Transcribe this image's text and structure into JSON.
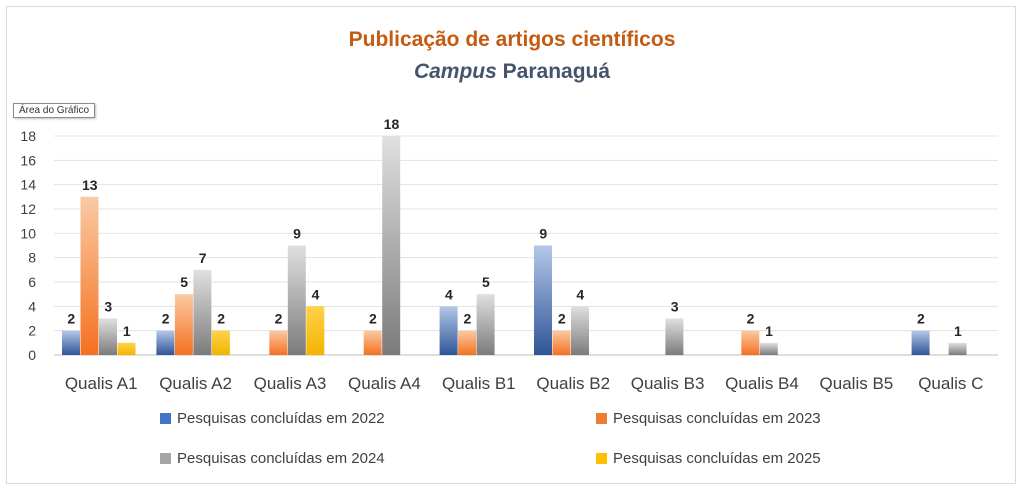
{
  "title_line1": "Publicação de artigos científicos",
  "title_line2_italic": "Campus",
  "title_line2_rest": "Paranaguá",
  "tooltip": "Área do Gráfico",
  "chart_data": {
    "type": "bar",
    "categories": [
      "Qualis A1",
      "Qualis A2",
      "Qualis A3",
      "Qualis A4",
      "Qualis B1",
      "Qualis B2",
      "Qualis B3",
      "Qualis B4",
      "Qualis B5",
      "Qualis C"
    ],
    "series": [
      {
        "name": "Pesquisas concluídas em 2022",
        "color": "#4472c4",
        "values": [
          2,
          2,
          null,
          null,
          4,
          9,
          null,
          null,
          null,
          2
        ]
      },
      {
        "name": "Pesquisas concluídas em 2023",
        "color": "#ed7d31",
        "values": [
          13,
          5,
          2,
          2,
          2,
          2,
          null,
          2,
          null,
          null
        ]
      },
      {
        "name": "Pesquisas concluídas em 2024",
        "color": "#a5a5a5",
        "values": [
          3,
          7,
          9,
          18,
          5,
          4,
          3,
          1,
          null,
          1
        ]
      },
      {
        "name": "Pesquisas concluídas em 2025",
        "color": "#ffc000",
        "values": [
          1,
          2,
          4,
          null,
          null,
          null,
          null,
          null,
          null,
          null
        ]
      }
    ],
    "y_ticks": [
      0,
      2,
      4,
      6,
      8,
      10,
      12,
      14,
      16,
      18
    ],
    "ylim": [
      0,
      18
    ],
    "grid": true,
    "legend_position": "bottom"
  }
}
